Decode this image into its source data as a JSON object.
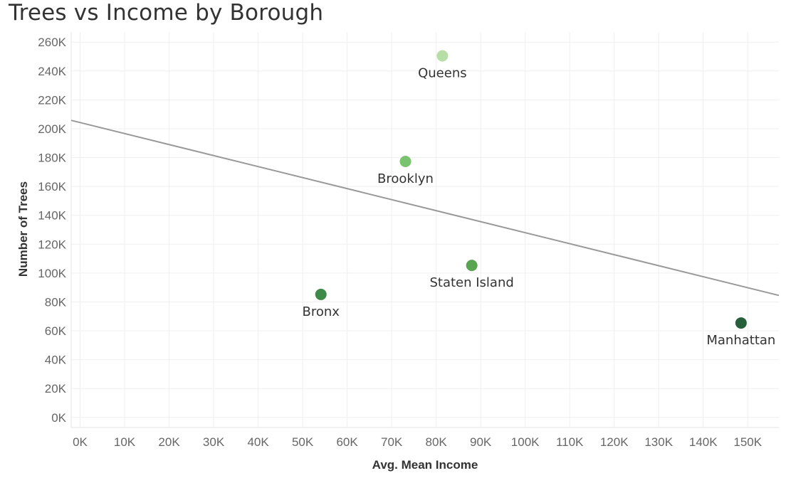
{
  "chart_data": {
    "type": "scatter",
    "title": "Trees vs Income by Borough",
    "xlabel": "Avg. Mean Income",
    "ylabel": "Number of Trees",
    "xlim": [
      -2000,
      157000
    ],
    "ylim": [
      -7000,
      267000
    ],
    "x_ticks": [
      {
        "value": 0,
        "label": "0K"
      },
      {
        "value": 10000,
        "label": "10K"
      },
      {
        "value": 20000,
        "label": "20K"
      },
      {
        "value": 30000,
        "label": "30K"
      },
      {
        "value": 40000,
        "label": "40K"
      },
      {
        "value": 50000,
        "label": "50K"
      },
      {
        "value": 60000,
        "label": "60K"
      },
      {
        "value": 70000,
        "label": "70K"
      },
      {
        "value": 80000,
        "label": "80K"
      },
      {
        "value": 90000,
        "label": "90K"
      },
      {
        "value": 100000,
        "label": "100K"
      },
      {
        "value": 110000,
        "label": "110K"
      },
      {
        "value": 120000,
        "label": "120K"
      },
      {
        "value": 130000,
        "label": "130K"
      },
      {
        "value": 140000,
        "label": "140K"
      },
      {
        "value": 150000,
        "label": "150K"
      }
    ],
    "y_ticks": [
      {
        "value": 0,
        "label": "0K"
      },
      {
        "value": 20000,
        "label": "20K"
      },
      {
        "value": 40000,
        "label": "40K"
      },
      {
        "value": 60000,
        "label": "60K"
      },
      {
        "value": 80000,
        "label": "80K"
      },
      {
        "value": 100000,
        "label": "100K"
      },
      {
        "value": 120000,
        "label": "120K"
      },
      {
        "value": 140000,
        "label": "140K"
      },
      {
        "value": 160000,
        "label": "160K"
      },
      {
        "value": 180000,
        "label": "180K"
      },
      {
        "value": 200000,
        "label": "200K"
      },
      {
        "value": 220000,
        "label": "220K"
      },
      {
        "value": 240000,
        "label": "240K"
      },
      {
        "value": 260000,
        "label": "260K"
      }
    ],
    "grid": true,
    "points": [
      {
        "label": "Queens",
        "x": 81400,
        "y": 250500,
        "color": "#b7dea7"
      },
      {
        "label": "Brooklyn",
        "x": 73100,
        "y": 177300,
        "color": "#79c26e"
      },
      {
        "label": "Staten Island",
        "x": 88000,
        "y": 105300,
        "color": "#5aa552"
      },
      {
        "label": "Bronx",
        "x": 54100,
        "y": 85200,
        "color": "#3e8a48"
      },
      {
        "label": "Manhattan",
        "x": 148500,
        "y": 65400,
        "color": "#25603a"
      }
    ],
    "trend_line": {
      "color": "#999999",
      "start": {
        "x": -2000,
        "y": 205800
      },
      "end": {
        "x": 157000,
        "y": 84500
      }
    }
  }
}
